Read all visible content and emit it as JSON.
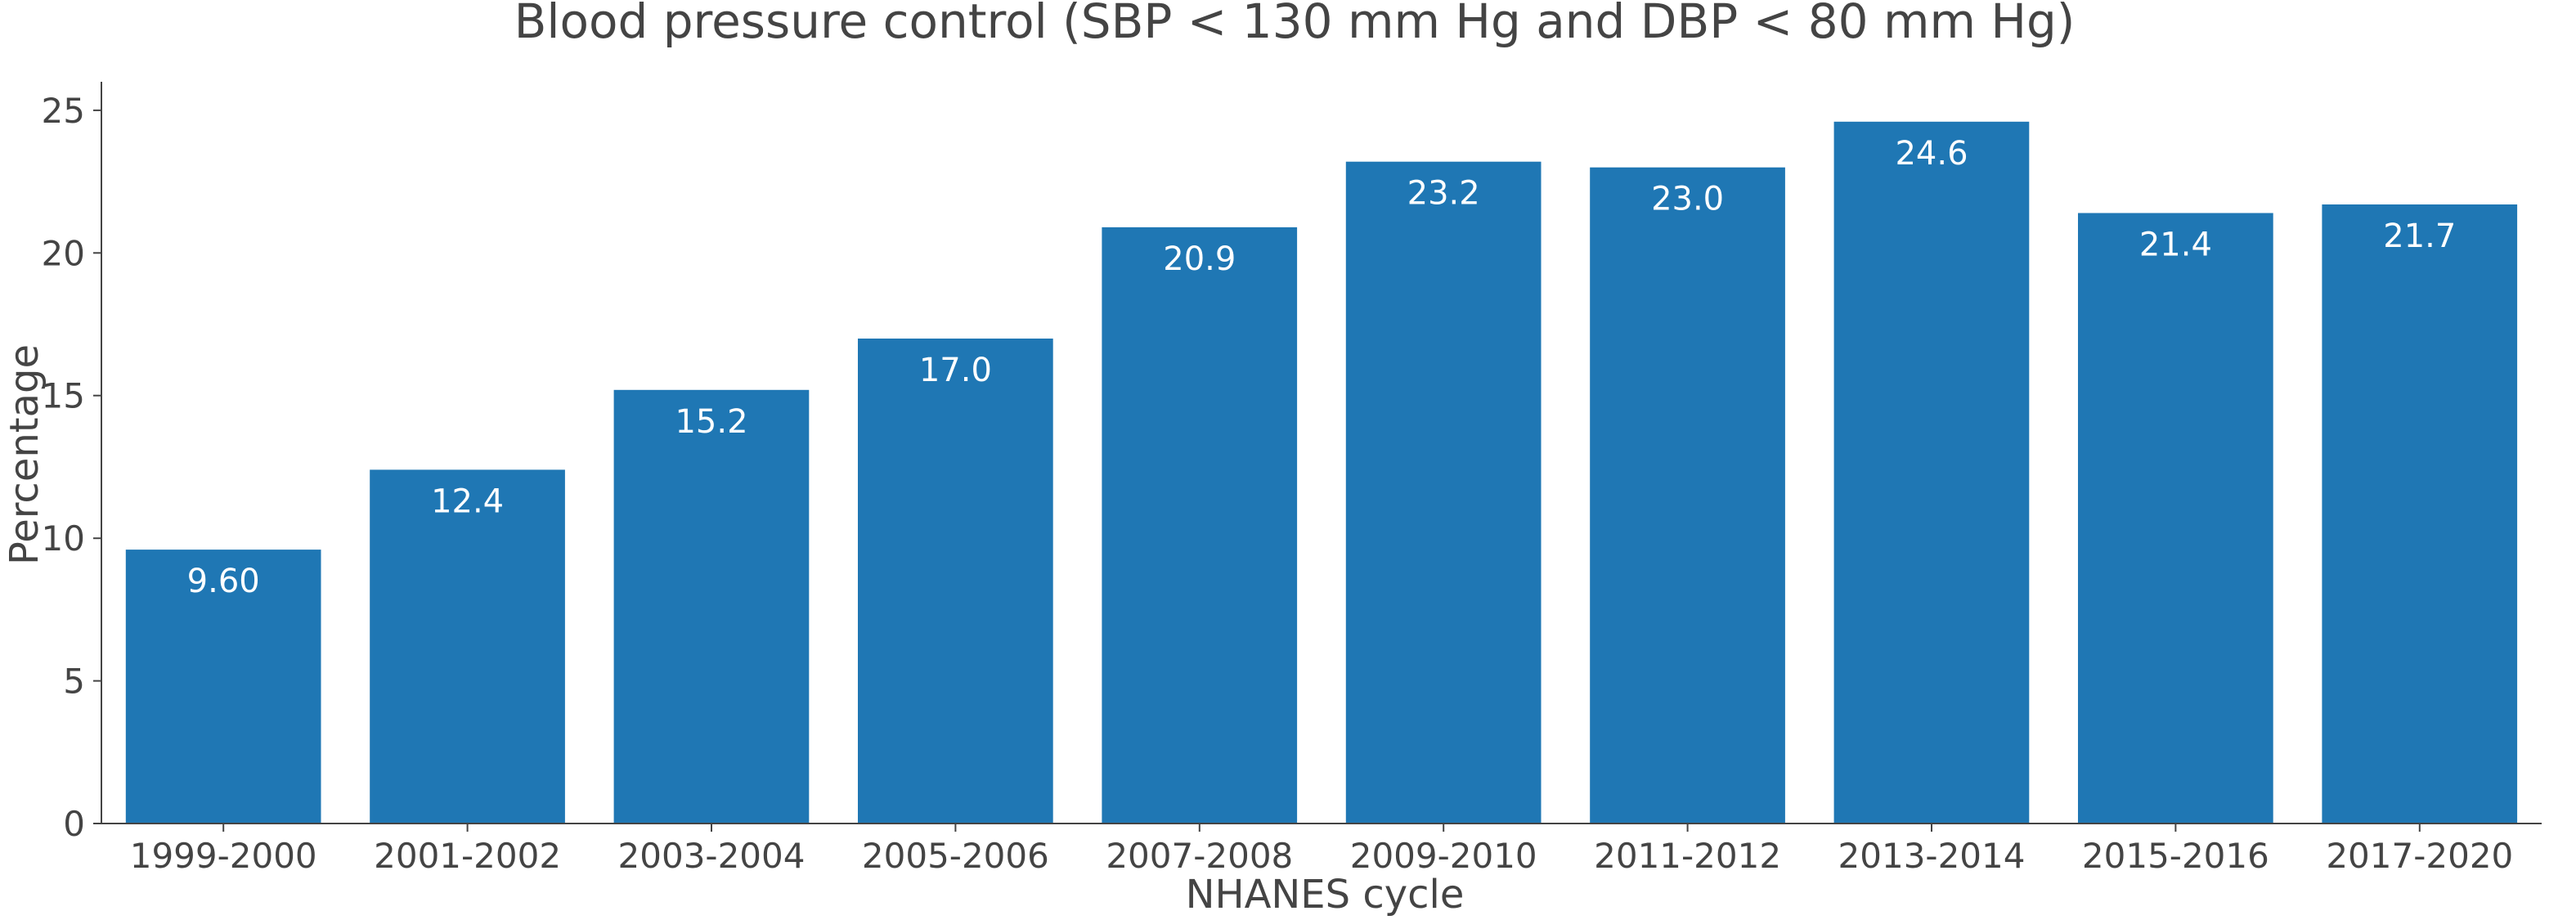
{
  "chart_data": {
    "type": "bar",
    "title": "Blood pressure control (SBP < 130 mm Hg and DBP < 80 mm Hg)",
    "xlabel": "NHANES cycle",
    "ylabel": "Percentage",
    "categories": [
      "1999-2000",
      "2001-2002",
      "2003-2004",
      "2005-2006",
      "2007-2008",
      "2009-2010",
      "2011-2012",
      "2013-2014",
      "2015-2016",
      "2017-2020"
    ],
    "values": [
      9.6,
      12.4,
      15.2,
      17.0,
      20.9,
      23.2,
      23.0,
      24.6,
      21.4,
      21.7
    ],
    "data_labels": [
      "9.60",
      "12.4",
      "15.2",
      "17.0",
      "20.9",
      "23.2",
      "23.0",
      "24.6",
      "21.4",
      "21.7"
    ],
    "ylim": [
      0,
      26
    ],
    "yticks": [
      0,
      5,
      10,
      15,
      20,
      25
    ],
    "grid": false,
    "legend": "none",
    "bar_color": "#1f77b4",
    "text_color": "#444444",
    "data_label_color": "#ffffff"
  }
}
